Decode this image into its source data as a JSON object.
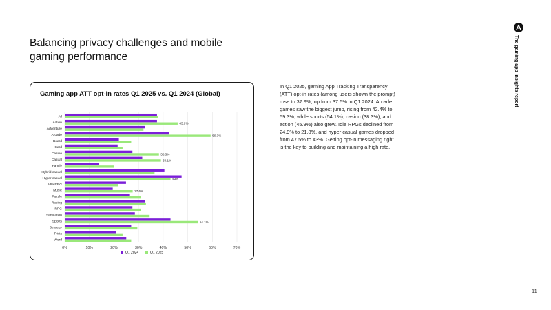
{
  "page": {
    "title": "Balancing privacy challenges and mobile gaming performance",
    "body_text": "In Q1 2025, gaming App Tracking Transparency (ATT) opt-in rates (among users shown the prompt) rose to 37.9%, up from 37.5% in Q1 2024. Arcade games saw the biggest jump, rising from 42.4% to 59.3%, while sports (54.1%), casino (38.3%), and action (45.9%) also grew. Idle RPGs declined from 24.9% to 21.8%, and hyper casual games dropped from 47.5% to 43%. Getting opt-in messaging right is the key to building and maintaining a high rate.",
    "side_label": "The gaming app insights report",
    "side_logo_icon": "brand-logo-icon",
    "page_number": "11"
  },
  "colors": {
    "q1_2024": "#7b1fd8",
    "q1_2025": "#9ae87a",
    "grid": "#e6e6e6",
    "text": "#111111"
  },
  "chart_data": {
    "type": "bar",
    "orientation": "horizontal",
    "title": "Gaming app ATT opt-in rates Q1 2025 vs. Q1 2024 (Global)",
    "categories": [
      "All",
      "Action",
      "Adventure",
      "Arcade",
      "Board",
      "Card",
      "Casino",
      "Casual",
      "Family",
      "Hybrid casual",
      "Hyper casual",
      "Idle RPG",
      "Music",
      "Puzzle",
      "Racing",
      "RPG",
      "Simulation",
      "Sports",
      "Strategy",
      "Trivia",
      "Word"
    ],
    "series": [
      {
        "name": "Q1 2024",
        "values": [
          37.5,
          37.5,
          32.5,
          42.4,
          22,
          21.5,
          27.5,
          31.5,
          14,
          40.5,
          47.5,
          24.9,
          19.5,
          26.5,
          32.5,
          27.5,
          28.5,
          43,
          27,
          21,
          25
        ]
      },
      {
        "name": "Q1 2025",
        "values": [
          37.9,
          45.9,
          32,
          59.3,
          27,
          23.5,
          38.3,
          39.1,
          20,
          36.5,
          43,
          21.8,
          27.6,
          31,
          33,
          31,
          34.5,
          54.1,
          29.5,
          23.5,
          27
        ]
      }
    ],
    "data_labels": [
      {
        "category": "Action",
        "series": "Q1 2025",
        "text": "45.9%"
      },
      {
        "category": "Arcade",
        "series": "Q1 2025",
        "text": "59.3%"
      },
      {
        "category": "Casino",
        "series": "Q1 2025",
        "text": "38.3%"
      },
      {
        "category": "Casual",
        "series": "Q1 2025",
        "text": "39.1%"
      },
      {
        "category": "Hyper casual",
        "series": "Q1 2025",
        "text": "43%"
      },
      {
        "category": "Music",
        "series": "Q1 2025",
        "text": "27.6%"
      },
      {
        "category": "Sports",
        "series": "Q1 2025",
        "text": "54.1%"
      }
    ],
    "xticks": [
      "0%",
      "10%",
      "20%",
      "30%",
      "40%",
      "50%",
      "60%",
      "70%"
    ],
    "xlim": [
      0,
      70
    ],
    "xlabel": "",
    "ylabel": "",
    "grid": true,
    "legend": "bottom-center"
  }
}
